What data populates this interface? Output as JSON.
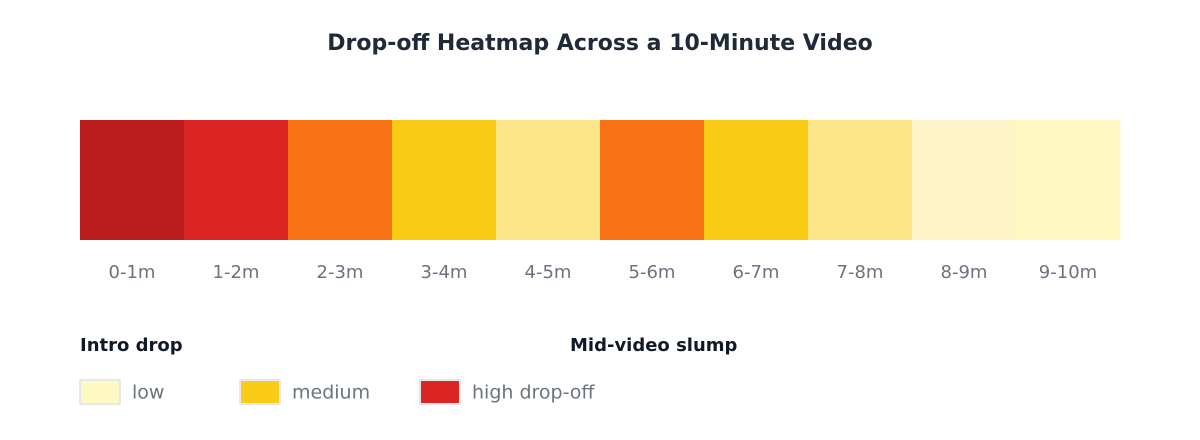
{
  "title": "Drop-off Heatmap Across a 10-Minute Video",
  "segments": [
    {
      "label": "0-1m",
      "color": "#b91c1c"
    },
    {
      "label": "1-2m",
      "color": "#dc2626"
    },
    {
      "label": "2-3m",
      "color": "#f97316"
    },
    {
      "label": "3-4m",
      "color": "#facc15"
    },
    {
      "label": "4-5m",
      "color": "#fde68a"
    },
    {
      "label": "5-6m",
      "color": "#f97316"
    },
    {
      "label": "6-7m",
      "color": "#facc15"
    },
    {
      "label": "7-8m",
      "color": "#fde68a"
    },
    {
      "label": "8-9m",
      "color": "#fef3c7"
    },
    {
      "label": "9-10m",
      "color": "#fef9c3"
    }
  ],
  "annotations": [
    "Intro drop",
    "Mid-video slump"
  ],
  "legend": [
    {
      "label": "low",
      "color": "#fef9c3"
    },
    {
      "label": "medium",
      "color": "#facc15"
    },
    {
      "label": "high drop-off",
      "color": "#dc2626"
    }
  ]
}
